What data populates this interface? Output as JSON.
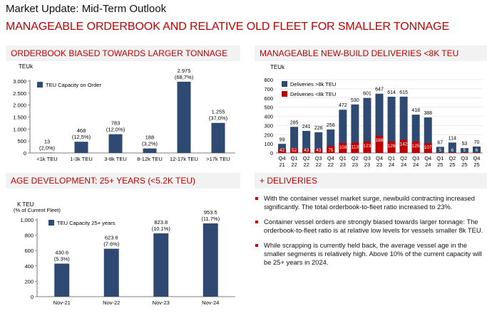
{
  "page": {
    "title": "Market Update: Mid-Term Outlook",
    "subtitle": "MANAGEABLE ORDERBOOK AND RELATIVE OLD FLEET FOR SMALLER TONNAGE"
  },
  "sections": {
    "orderbook": "ORDERBOOK BIASED TOWARDS LARGER TONNAGE",
    "deliveries": "MANAGEABLE NEW-BUILD DELIVERIES <8K TEU",
    "age": "AGE DEVELOPMENT: 25+ YEARS (<5.2K TEU)",
    "plus": "+ DELIVERIES"
  },
  "bullets": [
    "With the container vessel market surge, newbuild contracting increased significantly. The total orderbook-to-fleet ratio increased to 23%.",
    "Container vessel orders are strongly biased towards larger tonnage: The orderbook-to-fleet ratio is at relative low levels for vessels smaller 8k TEU.",
    "While scrapping is currently held back, the average vessel age in the smaller segments is relatively high. Above 10% of the current capacity will be 25+ years in 2024."
  ],
  "colors": {
    "navy": "#2e4a72",
    "red": "#c00000",
    "grid": "#d9d9d9",
    "axis": "#555555"
  },
  "chart_data": [
    {
      "id": "orderbook",
      "type": "bar",
      "ylabel": "TEUk",
      "ylim": [
        0,
        3000
      ],
      "yticks": [
        0,
        500,
        1000,
        1500,
        2000,
        2500,
        3000
      ],
      "ytick_labels": [
        "0",
        "500",
        "1.000",
        "1.500",
        "2.000",
        "2.500",
        "3.000"
      ],
      "categories": [
        "<1k TEU",
        "1-3k TEU",
        "3-8k TEU",
        "8-12k TEU",
        "12-17k TEU",
        ">17k TEU"
      ],
      "values": [
        13,
        468,
        783,
        188,
        2975,
        1255
      ],
      "value_labels": [
        "13",
        "468",
        "783",
        "188",
        "2.975",
        "1.255"
      ],
      "pct_labels": [
        "(2,0%)",
        "(12,5%)",
        "(12,0%)",
        "(3,2%)",
        "(68,7%)",
        "(37,0%)"
      ],
      "legend": "TEU Capacity on Order"
    },
    {
      "id": "deliveries",
      "type": "bar",
      "ylabel": "TEUk",
      "ylim": [
        0,
        800
      ],
      "yticks": [
        0,
        100,
        200,
        300,
        400,
        500,
        600,
        700,
        800
      ],
      "categories": [
        "Q4 21",
        "Q1 22",
        "Q2 22",
        "Q3 22",
        "Q4 22",
        "Q1 23",
        "Q2 23",
        "Q3 23",
        "Q4 23",
        "Q1 24",
        "Q2 24",
        "Q3 24",
        "Q4 24",
        "Q1 25",
        "Q2 25",
        "Q3 25",
        "Q4 25"
      ],
      "series": [
        {
          "name": "Deliveries >8k TEU",
          "values": [
            99,
            285,
            241,
            226,
            256,
            472,
            530,
            601,
            647,
            614,
            615,
            418,
            388,
            67,
            114,
            53,
            70
          ]
        },
        {
          "name": "Deliveries <8k TEU",
          "values": [
            42,
            52,
            43,
            43,
            75,
            109,
            113,
            123,
            188,
            126,
            142,
            125,
            107,
            5,
            6,
            5,
            6
          ]
        }
      ]
    },
    {
      "id": "age",
      "type": "bar",
      "ylabel": "K TEU",
      "ylabel2": "(% of Current Fleet)",
      "ylim": [
        0,
        1000
      ],
      "yticks": [
        0,
        200,
        400,
        600,
        800,
        1000
      ],
      "ytick_labels": [
        "0",
        "200",
        "400",
        "600",
        "800",
        "1,000"
      ],
      "categories": [
        "Nov-21",
        "Nov-22",
        "Nov-23",
        "Nov-24"
      ],
      "values": [
        430.6,
        623.6,
        823.8,
        953.5
      ],
      "value_labels": [
        "430.6",
        "623.6",
        "823.8",
        "953.5"
      ],
      "pct_labels": [
        "(5.3%)",
        "(7.6%)",
        "(10.1%)",
        "(11.7%)"
      ],
      "legend": "TEU Capacity 25+ years"
    }
  ]
}
